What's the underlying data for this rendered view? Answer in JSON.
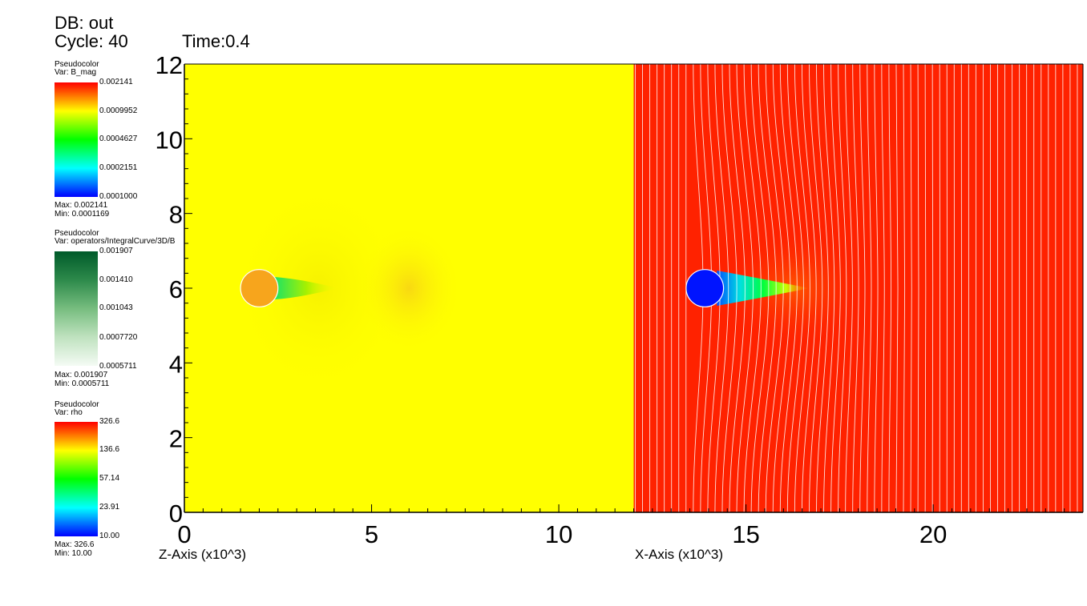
{
  "header": {
    "db_label": "DB: out",
    "cycle_label": "Cycle: 40",
    "time_label": "Time:0.4"
  },
  "legends": [
    {
      "plot_type": "Pseudocolor",
      "var_label": "Var: B_mag",
      "colormap": "hot",
      "ticks": [
        "0.002141",
        "0.0009952",
        "0.0004627",
        "0.0002151",
        "0.0001000"
      ],
      "max_label": "Max:  0.002141",
      "min_label": "Min:  0.0001169"
    },
    {
      "plot_type": "Pseudocolor",
      "var_label": "Var: operators/IntegralCurve/3D/B",
      "colormap": "greens",
      "ticks": [
        "0.001907",
        "0.001410",
        "0.001043",
        "0.0007720",
        "0.0005711"
      ],
      "max_label": "Max:  0.001907",
      "min_label": "Min:  0.0005711"
    },
    {
      "plot_type": "Pseudocolor",
      "var_label": "Var: rho",
      "colormap": "hot",
      "ticks": [
        "326.6",
        "136.6",
        "57.14",
        "23.91",
        "10.00"
      ],
      "max_label": "Max:  326.6",
      "min_label": "Min:  10.00"
    }
  ],
  "chart_data": {
    "type": "heatmap",
    "x_axis_label": "Z-Axis (x10^3)",
    "x_axis_label_2": "X-Axis (x10^3)",
    "x_ticks": [
      "0",
      "5",
      "10",
      "15",
      "20"
    ],
    "x_tick_values": [
      0,
      5,
      10,
      15,
      20
    ],
    "y_ticks": [
      "0",
      "2",
      "4",
      "6",
      "8",
      "10",
      "12"
    ],
    "y_tick_values": [
      0,
      2,
      4,
      6,
      8,
      10,
      12
    ],
    "xlim": [
      0,
      24
    ],
    "ylim": [
      0,
      12
    ],
    "panel_split_x": 12,
    "left_panel_color": "#ffff00",
    "right_panel_color": "#ff2200",
    "obstacles": [
      {
        "panel": "left",
        "cx": 2,
        "cy": 6,
        "r": 0.5,
        "color": "#f7a51c"
      },
      {
        "panel": "right",
        "cx": 13.9,
        "cy": 6,
        "r": 0.5,
        "color": "#0014ff"
      }
    ],
    "streamline_color": "#ffffff"
  }
}
